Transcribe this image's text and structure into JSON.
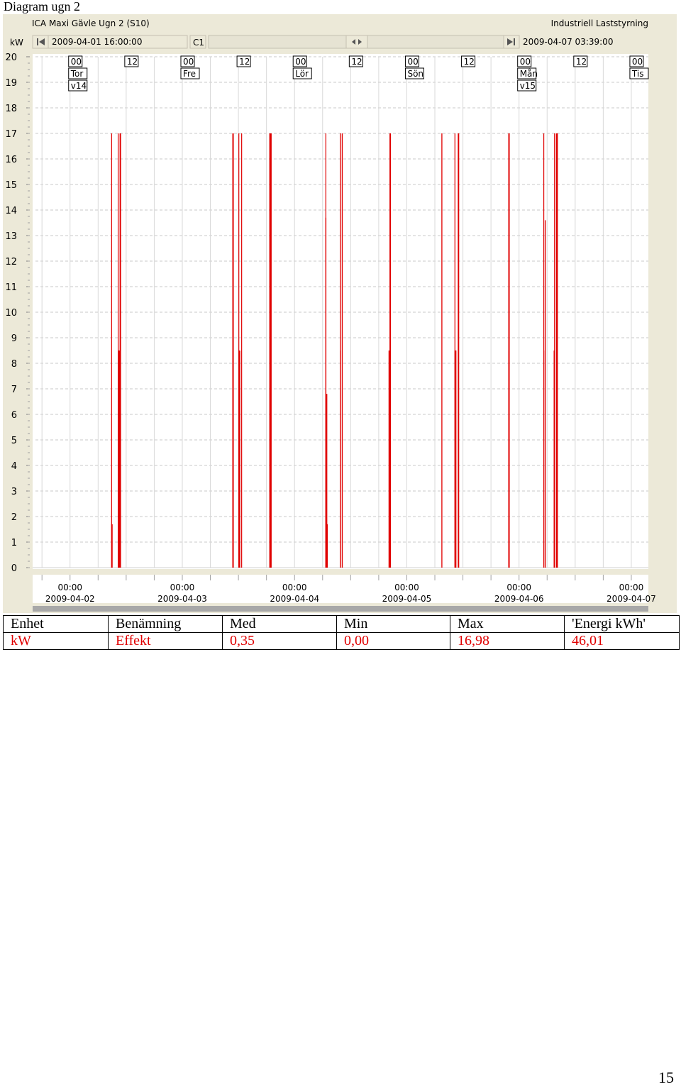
{
  "document": {
    "title": "Diagram ugn 2",
    "page_number": "15"
  },
  "app": {
    "window_title": "ICA Maxi Gävle Ugn 2 (S10)",
    "brand": "Industriell Laststyrning",
    "unit_label": "kW",
    "start_time": "2009-04-01 16:00:00",
    "channel": "C1",
    "end_time": "2009-04-07 03:39:00",
    "icons": {
      "first": "skip-to-start-icon",
      "scroll": "scroll-both-ways-icon",
      "last": "skip-to-end-icon"
    }
  },
  "chart_data": {
    "type": "bar",
    "ylabel": "kW",
    "ylim": [
      0,
      20
    ],
    "yticks": [
      0,
      1,
      2,
      3,
      4,
      5,
      6,
      7,
      8,
      9,
      10,
      11,
      12,
      13,
      14,
      15,
      16,
      17,
      18,
      19,
      20
    ],
    "xlim": [
      -8,
      123.65
    ],
    "x_unit": "hours from 2009-04-01 16:00",
    "grid": true,
    "color": "#e00000",
    "markers": [
      {
        "x": 0,
        "hour": "00",
        "day": "Tor",
        "week": "v14"
      },
      {
        "x": 12,
        "hour": "12"
      },
      {
        "x": 24,
        "hour": "00",
        "day": "Fre"
      },
      {
        "x": 36,
        "hour": "12"
      },
      {
        "x": 48,
        "hour": "00",
        "day": "Lör"
      },
      {
        "x": 60,
        "hour": "12"
      },
      {
        "x": 72,
        "hour": "00",
        "day": "Sön"
      },
      {
        "x": 84,
        "hour": "12"
      },
      {
        "x": 96,
        "hour": "00",
        "day": "Mån",
        "week": "v15"
      },
      {
        "x": 108,
        "hour": "12"
      },
      {
        "x": 120,
        "hour": "00",
        "day": "Tis"
      }
    ],
    "date_ticks": [
      {
        "x": 0,
        "time": "00:00",
        "date": "2009-04-02"
      },
      {
        "x": 24,
        "time": "00:00",
        "date": "2009-04-03"
      },
      {
        "x": 48,
        "time": "00:00",
        "date": "2009-04-04"
      },
      {
        "x": 72,
        "time": "00:00",
        "date": "2009-04-05"
      },
      {
        "x": 96,
        "time": "00:00",
        "date": "2009-04-06"
      },
      {
        "x": 120,
        "time": "00:00",
        "date": "2009-04-07"
      }
    ],
    "series": [
      {
        "values": [
          {
            "x": 8.8,
            "y": 17,
            "w": 0.15
          },
          {
            "x": 8.8,
            "y": 1.7,
            "w": 0.3
          },
          {
            "x": 10.2,
            "y": 17,
            "w": 0.15
          },
          {
            "x": 10.2,
            "y": 8.5,
            "w": 0.5
          },
          {
            "x": 10.6,
            "y": 17,
            "w": 0.3
          },
          {
            "x": 34.7,
            "y": 17,
            "w": 0.3
          },
          {
            "x": 34.7,
            "y": 8.5,
            "w": 0.15
          },
          {
            "x": 36.0,
            "y": 17,
            "w": 0.15
          },
          {
            "x": 36.0,
            "y": 8.5,
            "w": 0.4
          },
          {
            "x": 36.6,
            "y": 17,
            "w": 0.15
          },
          {
            "x": 42.6,
            "y": 17,
            "w": 0.5
          },
          {
            "x": 54.6,
            "y": 17,
            "w": 0.1
          },
          {
            "x": 54.6,
            "y": 13.7,
            "w": 0.2
          },
          {
            "x": 54.6,
            "y": 6.8,
            "w": 0.4
          },
          {
            "x": 54.7,
            "y": 1.7,
            "w": 0.4
          },
          {
            "x": 57.7,
            "y": 17,
            "w": 0.2
          },
          {
            "x": 57.7,
            "y": 8.5,
            "w": 0.2
          },
          {
            "x": 58.1,
            "y": 17,
            "w": 0.2
          },
          {
            "x": 68.3,
            "y": 17,
            "w": 0.3
          },
          {
            "x": 68.1,
            "y": 8.5,
            "w": 0.2
          },
          {
            "x": 68.4,
            "y": 6.8,
            "w": 0.2
          },
          {
            "x": 79.4,
            "y": 17,
            "w": 0.2
          },
          {
            "x": 82.2,
            "y": 17,
            "w": 0.15
          },
          {
            "x": 82.2,
            "y": 8.5,
            "w": 0.4
          },
          {
            "x": 82.9,
            "y": 17,
            "w": 0.3
          },
          {
            "x": 93.7,
            "y": 17,
            "w": 0.3
          },
          {
            "x": 93.7,
            "y": 8.5,
            "w": 0.2
          },
          {
            "x": 93.8,
            "y": 5,
            "w": 0.2
          },
          {
            "x": 101.2,
            "y": 17,
            "w": 0.1
          },
          {
            "x": 101.2,
            "y": 8.5,
            "w": 0.15
          },
          {
            "x": 101.5,
            "y": 13.6,
            "w": 0.2
          },
          {
            "x": 103.5,
            "y": 17,
            "w": 0.2
          },
          {
            "x": 103.4,
            "y": 8.5,
            "w": 0.2
          },
          {
            "x": 103.9,
            "y": 17,
            "w": 0.4
          }
        ]
      }
    ]
  },
  "stats_table": {
    "headers": [
      "Enhet",
      "Benämning",
      "Med",
      "Min",
      "Max",
      "'Energi kWh'"
    ],
    "rows": [
      [
        "kW",
        "Effekt",
        "0,35",
        "0,00",
        "16,98",
        "46,01"
      ]
    ]
  }
}
